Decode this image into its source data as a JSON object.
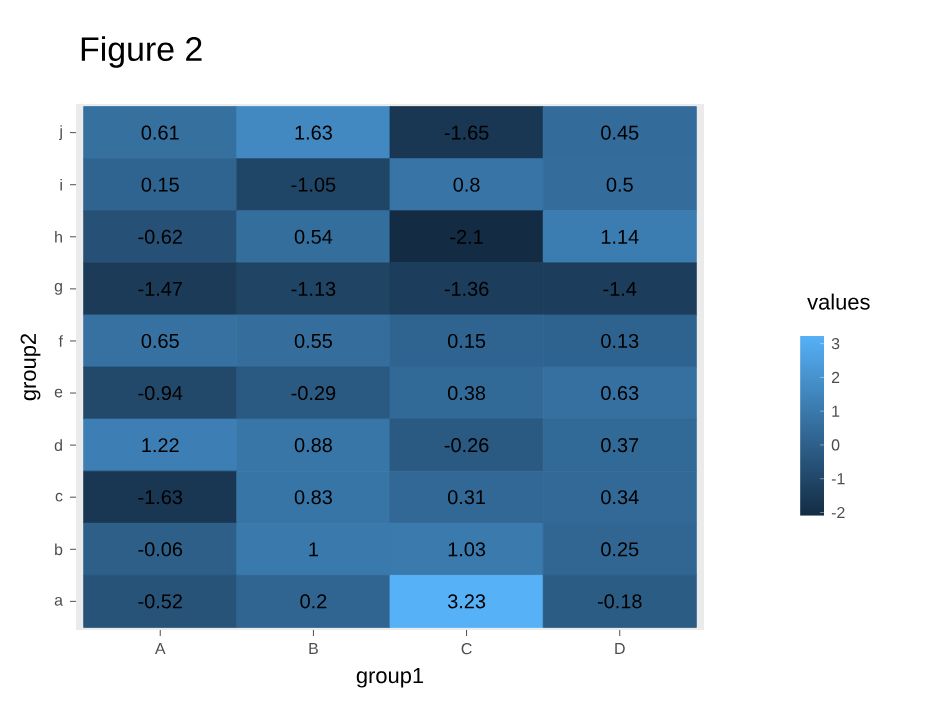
{
  "chart_data": {
    "type": "heatmap",
    "title": "Figure 2",
    "xlabel": "group1",
    "ylabel": "group2",
    "clabel": "values",
    "categories": [
      "A",
      "B",
      "C",
      "D"
    ],
    "y_categories": [
      "j",
      "i",
      "h",
      "g",
      "f",
      "e",
      "d",
      "c",
      "b",
      "a"
    ],
    "cells": [
      [
        0.61,
        1.63,
        -1.65,
        0.45
      ],
      [
        0.15,
        -1.05,
        0.8,
        0.5
      ],
      [
        -0.62,
        0.54,
        -2.1,
        1.14
      ],
      [
        -1.47,
        -1.13,
        -1.36,
        -1.4
      ],
      [
        0.65,
        0.55,
        0.15,
        0.13
      ],
      [
        -0.94,
        -0.29,
        0.38,
        0.63
      ],
      [
        1.22,
        0.88,
        -0.26,
        0.37
      ],
      [
        -1.63,
        0.83,
        0.31,
        0.34
      ],
      [
        -0.06,
        1,
        1.03,
        0.25
      ],
      [
        -0.52,
        0.2,
        3.23,
        -0.18
      ]
    ],
    "clim": [
      -2.1,
      3.23
    ],
    "cticks": [
      -2,
      -1,
      0,
      1,
      2,
      3
    ],
    "data_labels": true
  }
}
